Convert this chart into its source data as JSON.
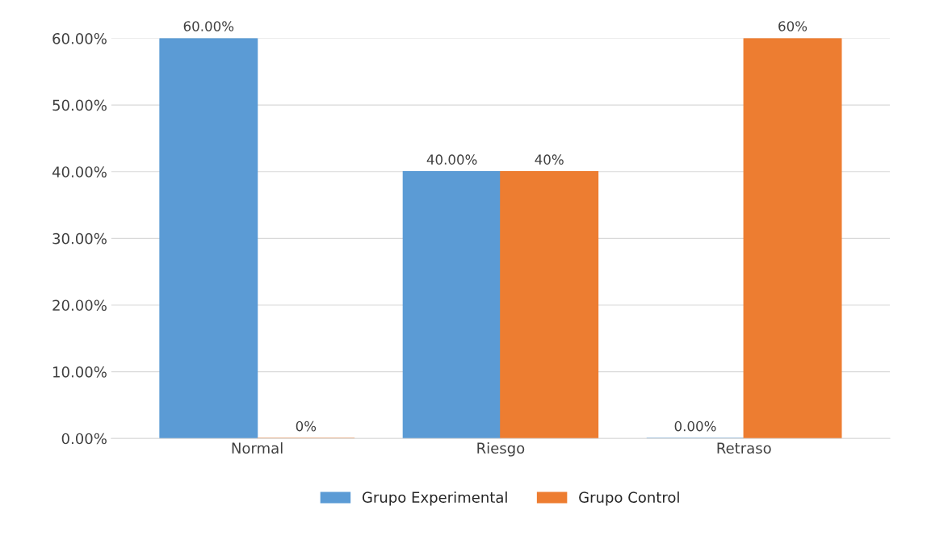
{
  "chart_data": {
    "type": "bar",
    "categories": [
      "Normal",
      "Riesgo",
      "Retraso"
    ],
    "series": [
      {
        "name": "Grupo Experimental",
        "color": "#5b9bd5",
        "values": [
          60,
          40,
          0
        ],
        "value_labels": [
          "60.00%",
          "40.00%",
          "0.00%"
        ]
      },
      {
        "name": "Grupo Control",
        "color": "#ed7d31",
        "values": [
          0,
          40,
          60
        ],
        "value_labels": [
          "0%",
          "40%",
          "60%"
        ]
      }
    ],
    "ylim": [
      0,
      60
    ],
    "yticks": [
      {
        "value": 0,
        "label": "0.00%"
      },
      {
        "value": 10,
        "label": "10.00%"
      },
      {
        "value": 20,
        "label": "20.00%"
      },
      {
        "value": 30,
        "label": "30.00%"
      },
      {
        "value": 40,
        "label": "40.00%"
      },
      {
        "value": 50,
        "label": "50.00%"
      },
      {
        "value": 60,
        "label": "60.00%"
      }
    ],
    "grid": "y",
    "legend": "bottom"
  }
}
